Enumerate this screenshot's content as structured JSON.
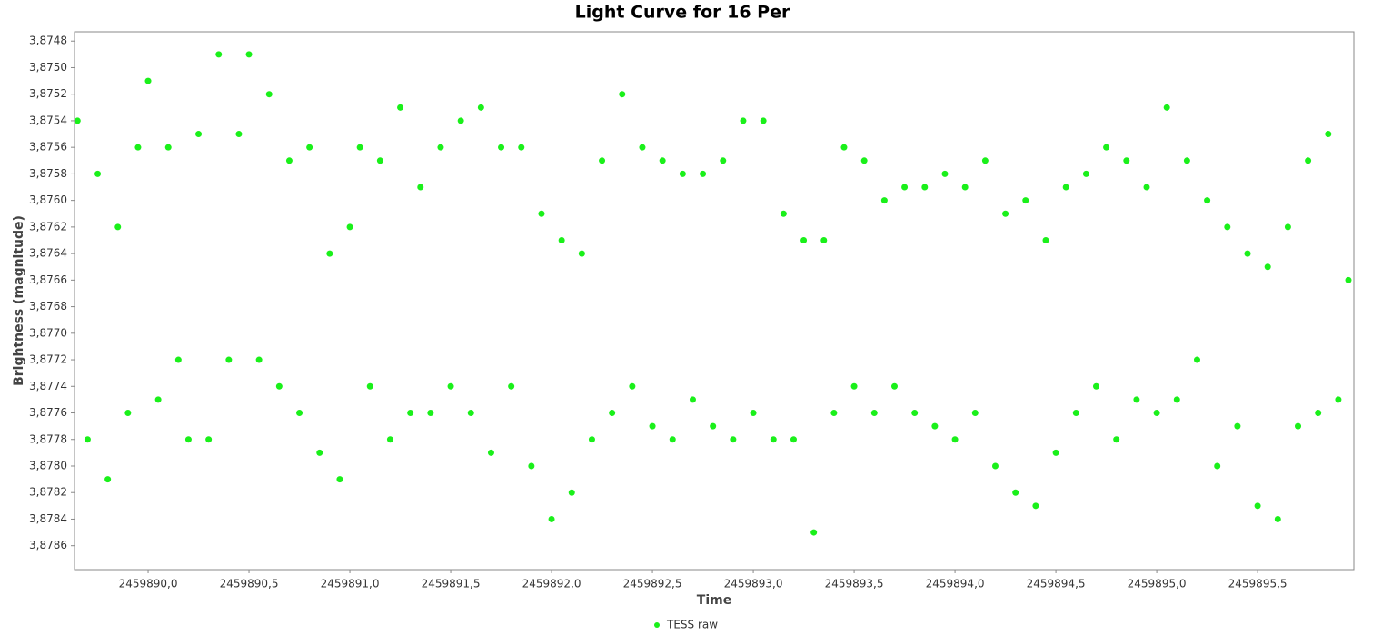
{
  "chart_data": {
    "type": "scatter",
    "title": "Light Curve for 16 Per",
    "x_label": "Time",
    "y_label": "Brightness (magnitude)",
    "y_inverted": true,
    "xlim": [
      2459889.635,
      2459895.977
    ],
    "ylim": [
      3.87473,
      3.87878
    ],
    "xticks": [
      {
        "value": 2459890.0,
        "label": "2459890,0"
      },
      {
        "value": 2459890.5,
        "label": "2459890,5"
      },
      {
        "value": 2459891.0,
        "label": "2459891,0"
      },
      {
        "value": 2459891.5,
        "label": "2459891,5"
      },
      {
        "value": 2459892.0,
        "label": "2459892,0"
      },
      {
        "value": 2459892.5,
        "label": "2459892,5"
      },
      {
        "value": 2459893.0,
        "label": "2459893,0"
      },
      {
        "value": 2459893.5,
        "label": "2459893,5"
      },
      {
        "value": 2459894.0,
        "label": "2459894,0"
      },
      {
        "value": 2459894.5,
        "label": "2459894,5"
      },
      {
        "value": 2459895.0,
        "label": "2459895,0"
      },
      {
        "value": 2459895.5,
        "label": "2459895,5"
      }
    ],
    "yticks": [
      {
        "value": 3.8748,
        "label": "3,8748"
      },
      {
        "value": 3.875,
        "label": "3,8750"
      },
      {
        "value": 3.8752,
        "label": "3,8752"
      },
      {
        "value": 3.8754,
        "label": "3,8754"
      },
      {
        "value": 3.8756,
        "label": "3,8756"
      },
      {
        "value": 3.8758,
        "label": "3,8758"
      },
      {
        "value": 3.876,
        "label": "3,8760"
      },
      {
        "value": 3.8762,
        "label": "3,8762"
      },
      {
        "value": 3.8764,
        "label": "3,8764"
      },
      {
        "value": 3.8766,
        "label": "3,8766"
      },
      {
        "value": 3.8768,
        "label": "3,8768"
      },
      {
        "value": 3.877,
        "label": "3,8770"
      },
      {
        "value": 3.8772,
        "label": "3,8772"
      },
      {
        "value": 3.8774,
        "label": "3,8774"
      },
      {
        "value": 3.8776,
        "label": "3,8776"
      },
      {
        "value": 3.8778,
        "label": "3,8778"
      },
      {
        "value": 3.878,
        "label": "3,8780"
      },
      {
        "value": 3.8782,
        "label": "3,8782"
      },
      {
        "value": 3.8784,
        "label": "3,8784"
      },
      {
        "value": 3.8786,
        "label": "3,8786"
      }
    ],
    "series": [
      {
        "name": "TESS raw",
        "color": "#1af01a",
        "x": [
          2459889.65,
          2459889.7,
          2459889.75,
          2459889.8,
          2459889.85,
          2459889.9,
          2459889.95,
          2459890.0,
          2459890.05,
          2459890.1,
          2459890.15,
          2459890.2,
          2459890.25,
          2459890.3,
          2459890.35,
          2459890.4,
          2459890.45,
          2459890.5,
          2459890.55,
          2459890.6,
          2459890.65,
          2459890.7,
          2459890.75,
          2459890.8,
          2459890.85,
          2459890.9,
          2459890.95,
          2459891.0,
          2459891.05,
          2459891.1,
          2459891.15,
          2459891.2,
          2459891.25,
          2459891.3,
          2459891.35,
          2459891.4,
          2459891.45,
          2459891.5,
          2459891.55,
          2459891.6,
          2459891.65,
          2459891.7,
          2459891.75,
          2459891.8,
          2459891.85,
          2459891.9,
          2459891.95,
          2459892.0,
          2459892.05,
          2459892.1,
          2459892.15,
          2459892.2,
          2459892.25,
          2459892.3,
          2459892.35,
          2459892.4,
          2459892.45,
          2459892.5,
          2459892.55,
          2459892.6,
          2459892.65,
          2459892.7,
          2459892.75,
          2459892.8,
          2459892.85,
          2459892.9,
          2459892.95,
          2459893.0,
          2459893.05,
          2459893.1,
          2459893.15,
          2459893.2,
          2459893.25,
          2459893.3,
          2459893.35,
          2459893.4,
          2459893.45,
          2459893.5,
          2459893.55,
          2459893.6,
          2459893.65,
          2459893.7,
          2459893.75,
          2459893.8,
          2459893.85,
          2459893.9,
          2459893.95,
          2459894.0,
          2459894.05,
          2459894.1,
          2459894.15,
          2459894.2,
          2459894.25,
          2459894.3,
          2459894.35,
          2459894.4,
          2459894.45,
          2459894.5,
          2459894.55,
          2459894.6,
          2459894.65,
          2459894.7,
          2459894.75,
          2459894.8,
          2459894.85,
          2459894.9,
          2459894.95,
          2459895.0,
          2459895.05,
          2459895.1,
          2459895.15,
          2459895.2,
          2459895.25,
          2459895.3,
          2459895.35,
          2459895.4,
          2459895.45,
          2459895.5,
          2459895.55,
          2459895.6,
          2459895.65,
          2459895.7,
          2459895.75,
          2459895.8,
          2459895.85,
          2459895.9,
          2459895.95
        ],
        "values": [
          3.8754,
          3.8778,
          3.8758,
          3.8781,
          3.8762,
          3.8776,
          3.8756,
          3.8751,
          3.8775,
          3.8756,
          3.8772,
          3.8778,
          3.8755,
          3.8778,
          3.8749,
          3.8772,
          3.8755,
          3.8749,
          3.8772,
          3.8752,
          3.8774,
          3.8757,
          3.8776,
          3.8756,
          3.8779,
          3.8764,
          3.8781,
          3.8762,
          3.8756,
          3.8774,
          3.8757,
          3.8778,
          3.8753,
          3.8776,
          3.8759,
          3.8776,
          3.8756,
          3.8774,
          3.8754,
          3.8776,
          3.8753,
          3.8779,
          3.8756,
          3.8774,
          3.8756,
          3.878,
          3.8761,
          3.8784,
          3.8763,
          3.8782,
          3.8764,
          3.8778,
          3.8757,
          3.8776,
          3.8752,
          3.8774,
          3.8756,
          3.8777,
          3.8757,
          3.8778,
          3.8758,
          3.8775,
          3.8758,
          3.8777,
          3.8757,
          3.8778,
          3.8754,
          3.8776,
          3.8754,
          3.8778,
          3.8761,
          3.8778,
          3.8763,
          3.8785,
          3.8763,
          3.8776,
          3.8756,
          3.8774,
          3.8757,
          3.8776,
          3.876,
          3.8774,
          3.8759,
          3.8776,
          3.8759,
          3.8777,
          3.8758,
          3.8778,
          3.8759,
          3.8776,
          3.8757,
          3.878,
          3.8761,
          3.8782,
          3.876,
          3.8783,
          3.8763,
          3.8779,
          3.8759,
          3.8776,
          3.8758,
          3.8774,
          3.8756,
          3.8778,
          3.8757,
          3.8775,
          3.8759,
          3.8776,
          3.8753,
          3.8775,
          3.8757,
          3.8772,
          3.876,
          3.878,
          3.8762,
          3.8777,
          3.8764,
          3.8783,
          3.8765,
          3.8784,
          3.8762,
          3.8777,
          3.8757,
          3.8776,
          3.8755,
          3.8775,
          3.8766
        ]
      }
    ]
  }
}
